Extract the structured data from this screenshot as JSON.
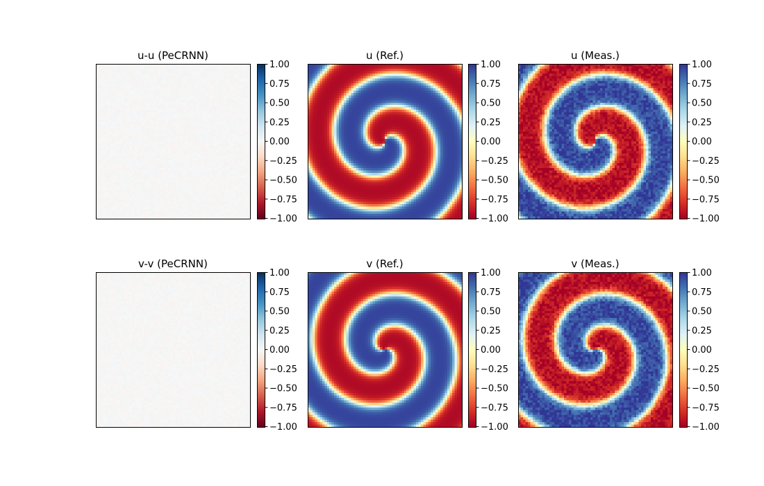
{
  "chart_data": [
    {
      "type": "heatmap",
      "title": "u-u (PeCRNN)",
      "field": "error",
      "colormap": "RdBu",
      "clim": [
        -1.0,
        1.0
      ],
      "colorbar_ticks": [
        "1.00",
        "0.75",
        "0.50",
        "0.25",
        "0.00",
        "−0.25",
        "−0.50",
        "−0.75",
        "−1.00"
      ]
    },
    {
      "type": "heatmap",
      "title": "u (Ref.)",
      "field": "u",
      "noise": 0,
      "colormap": "RdYlBu",
      "clim": [
        -1.0,
        1.0
      ],
      "colorbar_ticks": [
        "1.00",
        "0.75",
        "0.50",
        "0.25",
        "0.00",
        "−0.25",
        "−0.50",
        "−0.75",
        "−1.00"
      ]
    },
    {
      "type": "heatmap",
      "title": "u (Meas.)",
      "field": "u",
      "noise": 0.12,
      "colormap": "RdYlBu",
      "clim": [
        -1.0,
        1.0
      ],
      "colorbar_ticks": [
        "1.00",
        "0.75",
        "0.50",
        "0.25",
        "0.00",
        "−0.25",
        "−0.50",
        "−0.75",
        "−1.00"
      ]
    },
    {
      "type": "heatmap",
      "title": "v-v (PeCRNN)",
      "field": "error",
      "colormap": "RdBu",
      "clim": [
        -1.0,
        1.0
      ],
      "colorbar_ticks": [
        "1.00",
        "0.75",
        "0.50",
        "0.25",
        "0.00",
        "−0.25",
        "−0.50",
        "−0.75",
        "−1.00"
      ]
    },
    {
      "type": "heatmap",
      "title": "v (Ref.)",
      "field": "v",
      "noise": 0,
      "colormap": "RdYlBu",
      "clim": [
        -1.0,
        1.0
      ],
      "colorbar_ticks": [
        "1.00",
        "0.75",
        "0.50",
        "0.25",
        "0.00",
        "−0.25",
        "−0.50",
        "−0.75",
        "−1.00"
      ]
    },
    {
      "type": "heatmap",
      "title": "v (Meas.)",
      "field": "v",
      "noise": 0.12,
      "colormap": "RdYlBu",
      "clim": [
        -1.0,
        1.0
      ],
      "colorbar_ticks": [
        "1.00",
        "0.75",
        "0.50",
        "0.25",
        "0.00",
        "−0.25",
        "−0.50",
        "−0.75",
        "−1.00"
      ]
    }
  ]
}
